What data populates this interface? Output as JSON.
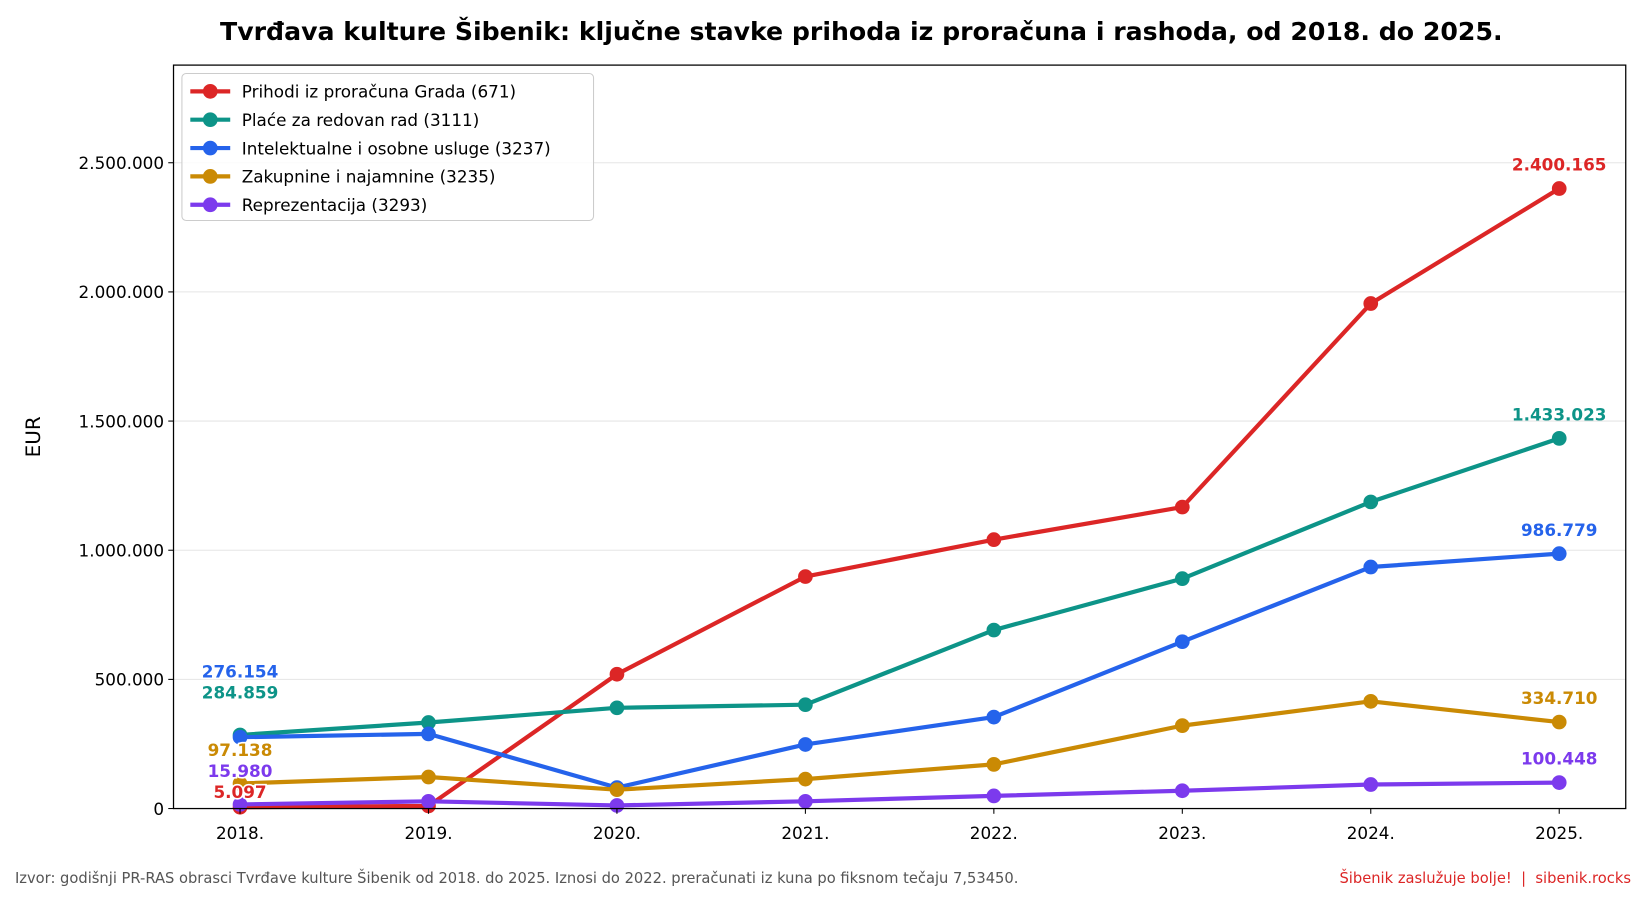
{
  "chart_data": {
    "type": "line",
    "title": "Tvrđava kulture Šibenik: ključne stavke prihoda iz proračuna i rashoda, od 2018. do 2025.",
    "xlabel": "",
    "ylabel": "EUR",
    "categories": [
      "2018.",
      "2019.",
      "2020.",
      "2021.",
      "2022.",
      "2023.",
      "2024.",
      "2025."
    ],
    "ylim": [
      0,
      2878000
    ],
    "yticks": [
      0,
      500000,
      1000000,
      1500000,
      2000000,
      2500000
    ],
    "ytick_labels": [
      "0",
      "500.000",
      "1.000.000",
      "1.500.000",
      "2.000.000",
      "2.500.000"
    ],
    "grid": "horizontal",
    "legend_position": "top-left",
    "series": [
      {
        "name": "Prihodi iz proračuna Grada (671)",
        "color": "#dc2626",
        "values": [
          5097,
          10000,
          520000,
          898000,
          1041000,
          1167000,
          1955000,
          2400165
        ],
        "first_label": "5.097",
        "last_label": "2.400.165"
      },
      {
        "name": "Plaće za redovan rad (3111)",
        "color": "#0d9488",
        "values": [
          284859,
          333000,
          390000,
          402000,
          691000,
          890000,
          1187000,
          1433023
        ],
        "first_label": "284.859",
        "last_label": "1.433.023"
      },
      {
        "name": "Intelektualne i osobne usluge (3237)",
        "color": "#2563eb",
        "values": [
          276154,
          289000,
          81000,
          248000,
          354000,
          646000,
          935000,
          986779
        ],
        "first_label": "276.154",
        "last_label": "986.779"
      },
      {
        "name": "Zakupnine i najamnine (3235)",
        "color": "#ca8a04",
        "values": [
          97138,
          122000,
          73000,
          114000,
          171000,
          321000,
          415000,
          334710
        ],
        "first_label": "97.138",
        "last_label": "334.710"
      },
      {
        "name": "Reprezentacija (3293)",
        "color": "#7c3aed",
        "values": [
          15980,
          28000,
          12000,
          28000,
          49000,
          69000,
          93000,
          100448
        ],
        "first_label": "15.980",
        "last_label": "100.448"
      }
    ]
  },
  "footer": {
    "source": "Izvor: godišnji PR-RAS obrasci Tvrđave kulture Šibenik od 2018. do 2025. Iznosi do 2022. preračunati iz kuna po fiksnom tečaju 7,53450.",
    "credit": "Šibenik zaslužuje bolje!  |  sibenik.rocks",
    "credit_color": "#dc2626"
  }
}
